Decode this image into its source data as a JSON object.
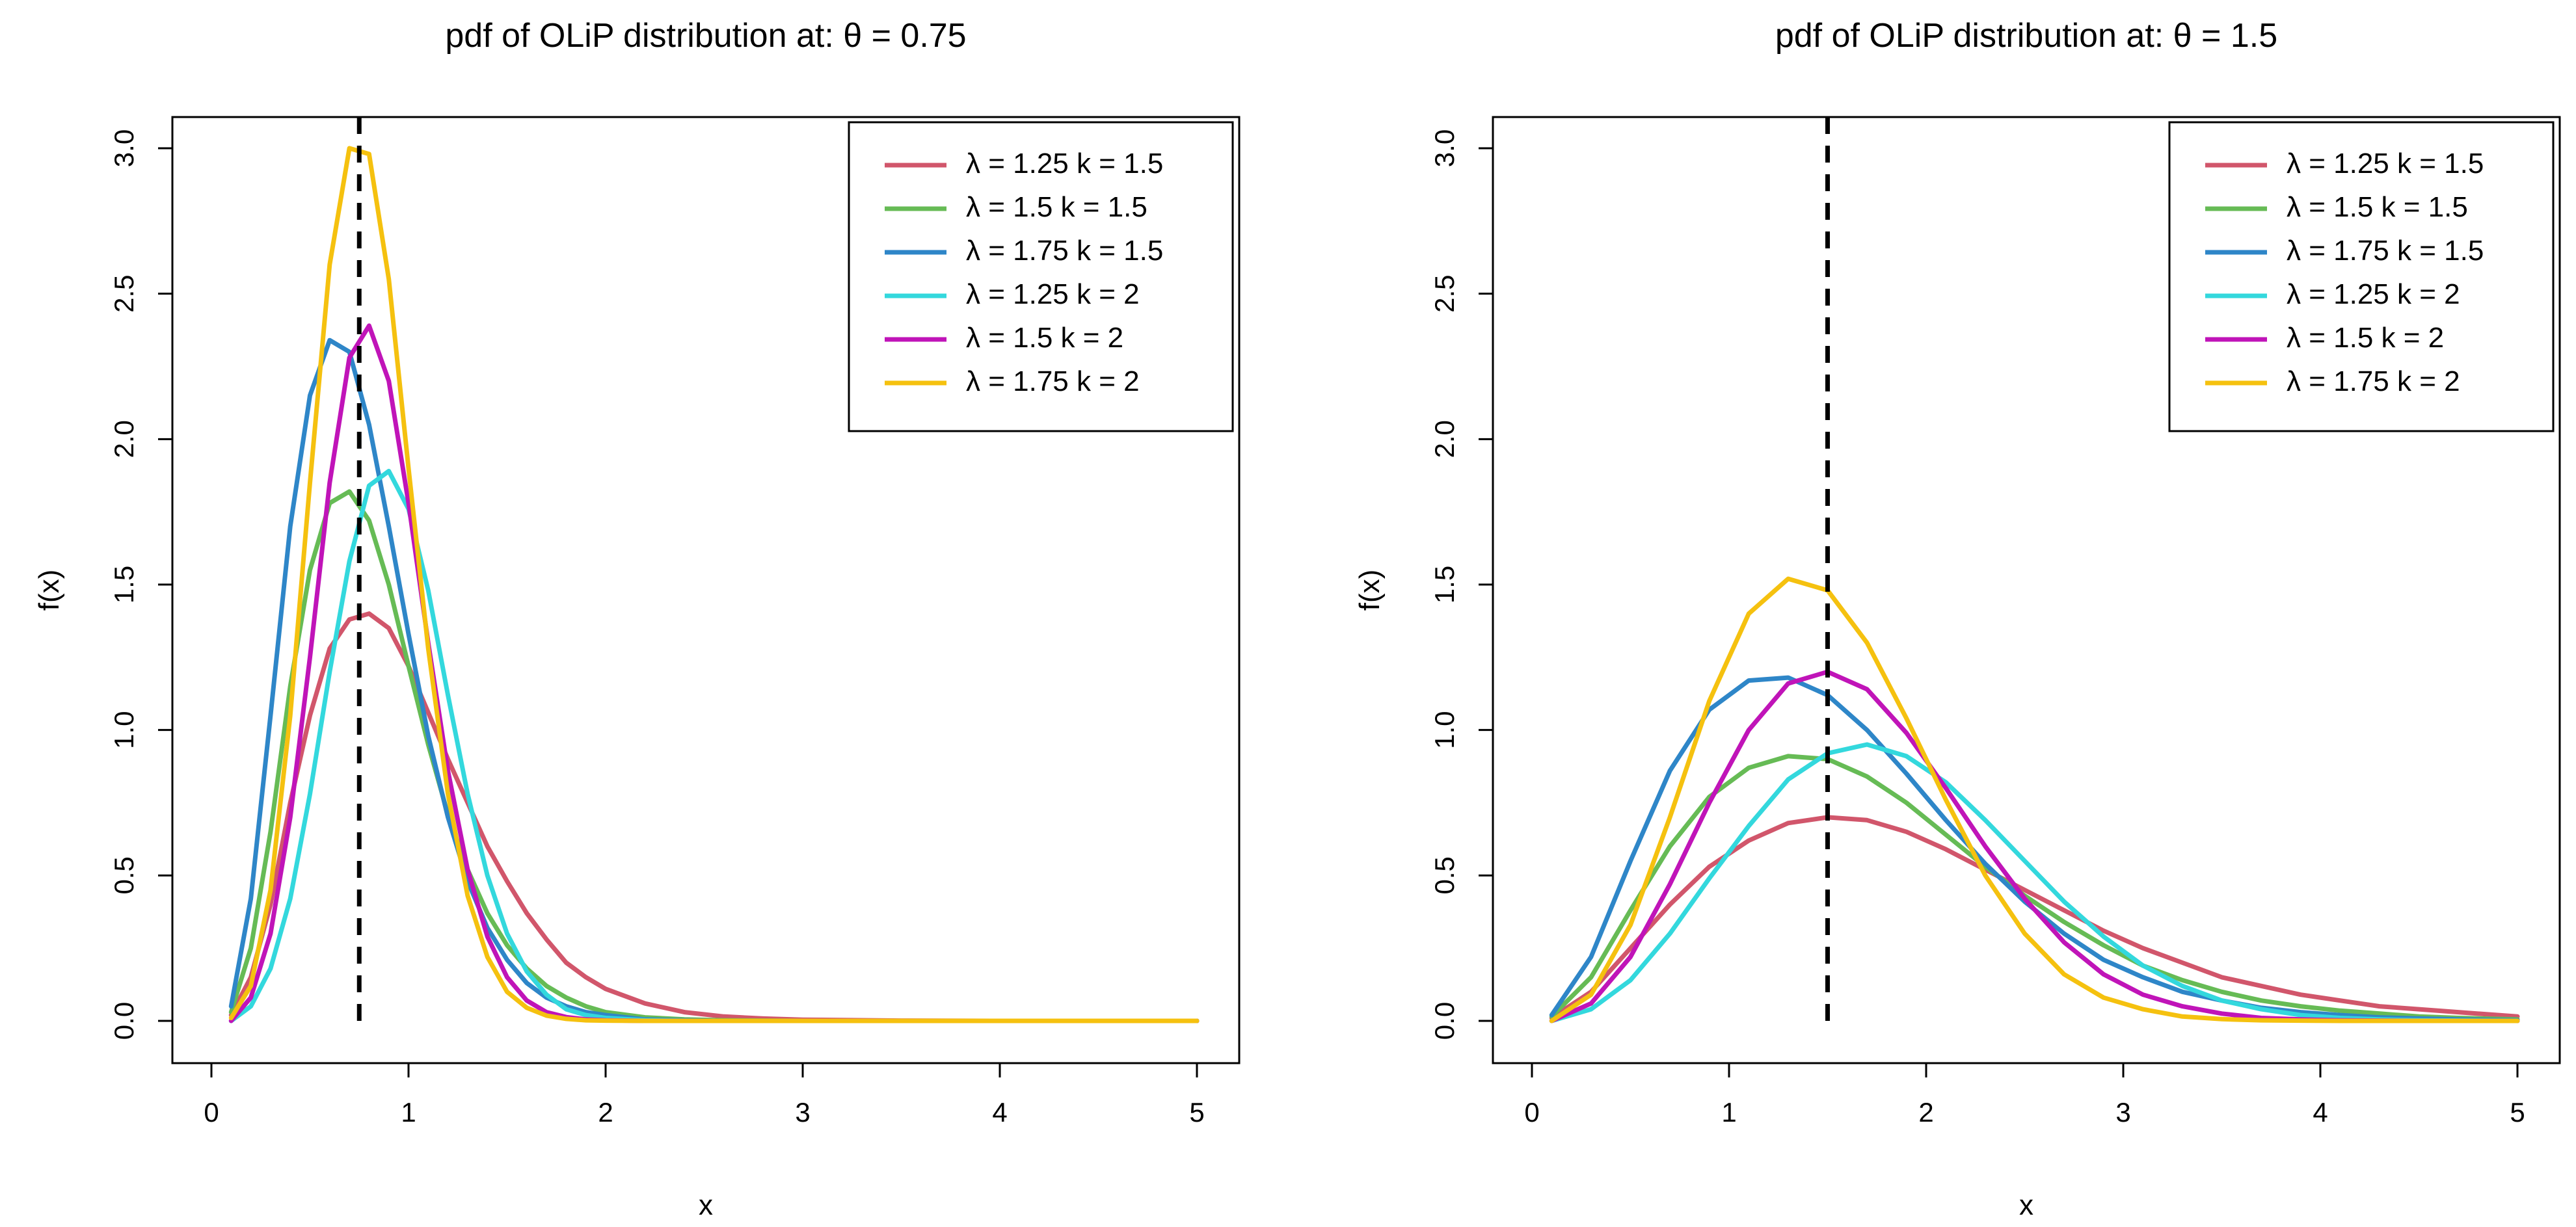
{
  "chart_data": [
    {
      "type": "line",
      "title": "pdf of OLiP distribution at: θ = 0.75",
      "xlabel": "x",
      "ylabel": "f(x)",
      "xlim": [
        0,
        5
      ],
      "ylim": [
        0,
        3.0
      ],
      "xticks": [
        "0",
        "1",
        "2",
        "3",
        "4",
        "5"
      ],
      "yticks": [
        "0.0",
        "0.5",
        "1.0",
        "1.5",
        "2.0",
        "2.5",
        "3.0"
      ],
      "vline": 0.75,
      "legend_position": "top-right",
      "x": [
        0.1,
        0.2,
        0.3,
        0.4,
        0.5,
        0.6,
        0.7,
        0.8,
        0.9,
        1.0,
        1.1,
        1.2,
        1.3,
        1.4,
        1.5,
        1.6,
        1.7,
        1.8,
        1.9,
        2.0,
        2.2,
        2.4,
        2.6,
        2.8,
        3.0,
        3.5,
        4.0,
        4.5,
        5.0
      ],
      "series": [
        {
          "name": "λ = 1.25  k = 1.5",
          "color": "#d1566b",
          "values": [
            0.02,
            0.15,
            0.4,
            0.75,
            1.05,
            1.28,
            1.38,
            1.4,
            1.35,
            1.22,
            1.06,
            0.9,
            0.75,
            0.6,
            0.48,
            0.37,
            0.28,
            0.2,
            0.15,
            0.11,
            0.06,
            0.03,
            0.015,
            0.008,
            0.004,
            0.001,
            0.0,
            0.0,
            0.0
          ]
        },
        {
          "name": "λ = 1.5  k = 1.5",
          "color": "#66bb55",
          "values": [
            0.03,
            0.25,
            0.65,
            1.15,
            1.55,
            1.78,
            1.82,
            1.72,
            1.5,
            1.22,
            0.95,
            0.71,
            0.52,
            0.37,
            0.26,
            0.18,
            0.12,
            0.08,
            0.05,
            0.03,
            0.012,
            0.005,
            0.002,
            0.001,
            0.0,
            0.0,
            0.0,
            0.0,
            0.0
          ]
        },
        {
          "name": "λ = 1.75  k = 1.5",
          "color": "#2e86c8",
          "values": [
            0.05,
            0.42,
            1.05,
            1.7,
            2.15,
            2.34,
            2.3,
            2.05,
            1.7,
            1.33,
            0.98,
            0.7,
            0.48,
            0.32,
            0.21,
            0.13,
            0.08,
            0.05,
            0.03,
            0.02,
            0.005,
            0.002,
            0.0,
            0.0,
            0.0,
            0.0,
            0.0,
            0.0,
            0.0
          ]
        },
        {
          "name": "λ = 1.25  k = 2",
          "color": "#33d8dd",
          "values": [
            0.0,
            0.05,
            0.18,
            0.42,
            0.78,
            1.2,
            1.58,
            1.84,
            1.89,
            1.76,
            1.48,
            1.12,
            0.78,
            0.5,
            0.3,
            0.17,
            0.09,
            0.04,
            0.02,
            0.01,
            0.002,
            0.0,
            0.0,
            0.0,
            0.0,
            0.0,
            0.0,
            0.0,
            0.0
          ]
        },
        {
          "name": "λ = 1.5  k = 2",
          "color": "#c014b8",
          "values": [
            0.0,
            0.08,
            0.3,
            0.7,
            1.25,
            1.85,
            2.28,
            2.39,
            2.2,
            1.78,
            1.3,
            0.86,
            0.52,
            0.29,
            0.15,
            0.07,
            0.03,
            0.013,
            0.005,
            0.002,
            0.0,
            0.0,
            0.0,
            0.0,
            0.0,
            0.0,
            0.0,
            0.0,
            0.0
          ]
        },
        {
          "name": "λ = 1.75  k = 2",
          "color": "#f5c10f",
          "values": [
            0.01,
            0.12,
            0.45,
            1.05,
            1.85,
            2.6,
            3.0,
            2.98,
            2.55,
            1.9,
            1.28,
            0.78,
            0.43,
            0.22,
            0.1,
            0.045,
            0.018,
            0.007,
            0.002,
            0.001,
            0.0,
            0.0,
            0.0,
            0.0,
            0.0,
            0.0,
            0.0,
            0.0,
            0.0
          ]
        }
      ]
    },
    {
      "type": "line",
      "title": "pdf of OLiP distribution at: θ = 1.5",
      "xlabel": "x",
      "ylabel": "f(x)",
      "xlim": [
        0,
        5
      ],
      "ylim": [
        0,
        3.0
      ],
      "xticks": [
        "0",
        "1",
        "2",
        "3",
        "4",
        "5"
      ],
      "yticks": [
        "0.0",
        "0.5",
        "1.0",
        "1.5",
        "2.0",
        "2.5",
        "3.0"
      ],
      "vline": 1.5,
      "legend_position": "top-right",
      "x": [
        0.1,
        0.3,
        0.5,
        0.7,
        0.9,
        1.1,
        1.3,
        1.5,
        1.7,
        1.9,
        2.1,
        2.3,
        2.5,
        2.7,
        2.9,
        3.1,
        3.3,
        3.5,
        3.7,
        3.9,
        4.1,
        4.3,
        4.5,
        4.7,
        5.0
      ],
      "series": [
        {
          "name": "λ = 1.25  k = 1.5",
          "color": "#d1566b",
          "values": [
            0.01,
            0.1,
            0.25,
            0.4,
            0.53,
            0.62,
            0.68,
            0.7,
            0.69,
            0.65,
            0.59,
            0.52,
            0.45,
            0.38,
            0.31,
            0.25,
            0.2,
            0.15,
            0.12,
            0.09,
            0.07,
            0.05,
            0.04,
            0.03,
            0.015
          ]
        },
        {
          "name": "λ = 1.5  k = 1.5",
          "color": "#66bb55",
          "values": [
            0.015,
            0.15,
            0.38,
            0.6,
            0.77,
            0.87,
            0.91,
            0.9,
            0.84,
            0.75,
            0.64,
            0.53,
            0.43,
            0.34,
            0.26,
            0.19,
            0.14,
            0.1,
            0.07,
            0.05,
            0.035,
            0.025,
            0.015,
            0.01,
            0.005
          ]
        },
        {
          "name": "λ = 1.75  k = 1.5",
          "color": "#2e86c8",
          "values": [
            0.02,
            0.22,
            0.55,
            0.86,
            1.07,
            1.17,
            1.18,
            1.12,
            1.0,
            0.85,
            0.69,
            0.54,
            0.41,
            0.3,
            0.21,
            0.15,
            0.1,
            0.07,
            0.045,
            0.03,
            0.02,
            0.012,
            0.008,
            0.005,
            0.002
          ]
        },
        {
          "name": "λ = 1.25  k = 2",
          "color": "#33d8dd",
          "values": [
            0.0,
            0.04,
            0.14,
            0.3,
            0.49,
            0.67,
            0.83,
            0.92,
            0.95,
            0.91,
            0.82,
            0.69,
            0.55,
            0.41,
            0.29,
            0.19,
            0.12,
            0.07,
            0.04,
            0.02,
            0.01,
            0.005,
            0.002,
            0.001,
            0.0
          ]
        },
        {
          "name": "λ = 1.5  k = 2",
          "color": "#c014b8",
          "values": [
            0.0,
            0.06,
            0.22,
            0.47,
            0.75,
            1.0,
            1.16,
            1.2,
            1.14,
            0.99,
            0.8,
            0.6,
            0.42,
            0.27,
            0.16,
            0.09,
            0.05,
            0.025,
            0.01,
            0.005,
            0.002,
            0.001,
            0.0,
            0.0,
            0.0
          ]
        },
        {
          "name": "λ = 1.75  k = 2",
          "color": "#f5c10f",
          "values": [
            0.0,
            0.09,
            0.33,
            0.7,
            1.1,
            1.4,
            1.52,
            1.48,
            1.3,
            1.04,
            0.76,
            0.5,
            0.3,
            0.16,
            0.08,
            0.04,
            0.015,
            0.006,
            0.002,
            0.001,
            0.0,
            0.0,
            0.0,
            0.0,
            0.0
          ]
        }
      ]
    }
  ]
}
